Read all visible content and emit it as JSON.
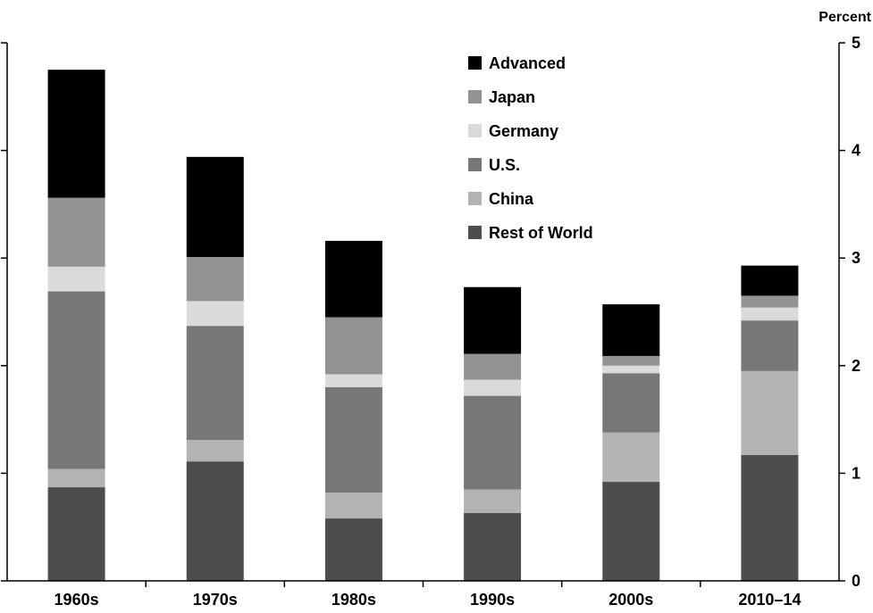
{
  "chart_data": {
    "type": "bar",
    "stacked": true,
    "categories": [
      "1960s",
      "1970s",
      "1980s",
      "1990s",
      "2000s",
      "2010–14"
    ],
    "series": [
      {
        "name": "Rest of World",
        "color": "#4d4d4d",
        "values": [
          0.87,
          1.11,
          0.58,
          0.63,
          0.92,
          1.17
        ]
      },
      {
        "name": "China",
        "color": "#b3b3b3",
        "values": [
          0.17,
          0.2,
          0.24,
          0.22,
          0.46,
          0.78
        ]
      },
      {
        "name": "U.S.",
        "color": "#777777",
        "values": [
          1.65,
          1.06,
          0.98,
          0.87,
          0.55,
          0.47
        ]
      },
      {
        "name": "Germany",
        "color": "#dadada",
        "values": [
          0.23,
          0.23,
          0.12,
          0.15,
          0.07,
          0.12
        ]
      },
      {
        "name": "Japan",
        "color": "#939393",
        "values": [
          0.64,
          0.41,
          0.53,
          0.24,
          0.09,
          0.11
        ]
      },
      {
        "name": "Advanced",
        "color": "#000000",
        "values": [
          1.19,
          0.93,
          0.71,
          0.62,
          0.48,
          0.28
        ]
      }
    ],
    "legend_order": [
      "Advanced",
      "Japan",
      "Germany",
      "U.S.",
      "China",
      "Rest of World"
    ],
    "ylabel": "Percent",
    "ylim": [
      0,
      5
    ],
    "yticks": [
      0,
      1,
      2,
      3,
      4,
      5
    ],
    "ytick_labels": [
      "0",
      "1",
      "2",
      "3",
      "4",
      "5"
    ],
    "y_axis_side": "right",
    "legend_position": "top-center",
    "grid": false
  }
}
